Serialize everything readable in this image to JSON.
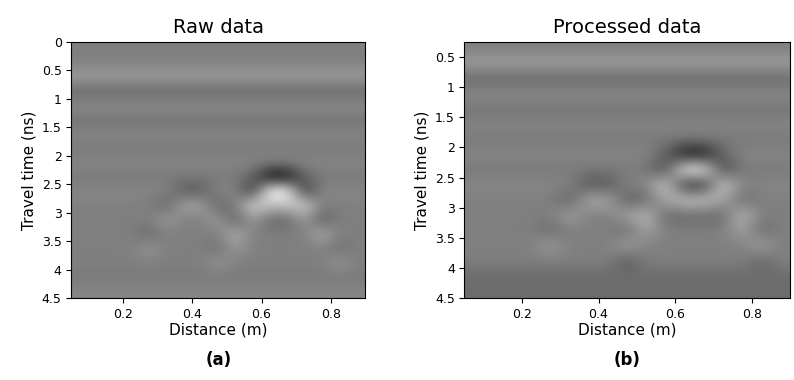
{
  "chart_data": [
    {
      "type": "heatmap",
      "title": "Raw data",
      "caption": "(a)",
      "x_label": "Distance (m)",
      "y_label": "Travel time (ns)",
      "xlim": [
        0.05,
        0.9
      ],
      "ylim": [
        4.5,
        0
      ],
      "xticks": [
        0.2,
        0.4,
        0.6,
        0.8
      ],
      "yticks": [
        0,
        0.5,
        1,
        1.5,
        2,
        2.5,
        3,
        3.5,
        4,
        4.5
      ],
      "color": "gray",
      "value_range": [
        -1,
        1
      ],
      "x": [
        0.075,
        0.125,
        0.175,
        0.225,
        0.275,
        0.325,
        0.375,
        0.425,
        0.475,
        0.525,
        0.575,
        0.625,
        0.675,
        0.725,
        0.775,
        0.825,
        0.875
      ],
      "y": [
        0.125,
        0.375,
        0.625,
        0.875,
        1.125,
        1.375,
        1.625,
        1.875,
        2.125,
        2.375,
        2.625,
        2.875,
        3.125,
        3.375,
        3.625,
        3.875,
        4.125,
        4.375
      ],
      "cells": [
        [
          0,
          0,
          0,
          0,
          0,
          0,
          0,
          0,
          0,
          0,
          0,
          0,
          0,
          0,
          0,
          0,
          0
        ],
        [
          0,
          0,
          0,
          0,
          0,
          0,
          0,
          0,
          0,
          0,
          0,
          0,
          0,
          0,
          0,
          0,
          0
        ],
        [
          0.25,
          0.25,
          0.25,
          0.25,
          0.25,
          0.25,
          0.25,
          0.25,
          0.25,
          0.25,
          0.25,
          0.25,
          0.25,
          0.25,
          0.25,
          0.25,
          0.25
        ],
        [
          -0.2,
          -0.2,
          -0.2,
          -0.2,
          -0.2,
          -0.2,
          -0.2,
          -0.2,
          -0.2,
          -0.2,
          -0.2,
          -0.2,
          -0.2,
          -0.2,
          -0.2,
          -0.2,
          -0.2
        ],
        [
          0.1,
          0.1,
          0.1,
          0.1,
          0.1,
          0.1,
          0.1,
          0.1,
          0.1,
          0.1,
          0.1,
          0.1,
          0.1,
          0.1,
          0.1,
          0.1,
          0.1
        ],
        [
          -0.1,
          -0.1,
          -0.1,
          -0.1,
          -0.1,
          -0.1,
          -0.1,
          -0.1,
          -0.1,
          -0.1,
          -0.1,
          -0.1,
          -0.1,
          -0.1,
          -0.1,
          -0.1,
          -0.1
        ],
        [
          0.05,
          0.05,
          0.05,
          0.05,
          0.05,
          0.05,
          0.05,
          0.05,
          0.05,
          0.05,
          0.05,
          0.05,
          0.05,
          0.05,
          0.05,
          0.05,
          0.05
        ],
        [
          -0.05,
          -0.05,
          -0.05,
          -0.05,
          -0.05,
          -0.05,
          -0.05,
          -0.05,
          -0.05,
          -0.05,
          -0.05,
          -0.05,
          -0.05,
          -0.05,
          -0.05,
          -0.05,
          -0.05
        ],
        [
          0.05,
          0.05,
          0.05,
          0.05,
          0.05,
          0.05,
          0.05,
          0.05,
          0.05,
          0.05,
          0.05,
          0.05,
          0.05,
          0.05,
          0.05,
          0.05,
          0.05
        ],
        [
          -0.05,
          -0.05,
          -0.05,
          -0.05,
          -0.05,
          -0.05,
          -0.05,
          -0.05,
          -0.05,
          -0.05,
          -0.2,
          -1.0,
          -1.0,
          -0.2,
          -0.05,
          -0.05,
          -0.05
        ],
        [
          0.05,
          0.05,
          0.05,
          0.05,
          0.05,
          0.05,
          -0.3,
          -0.3,
          0.05,
          0.05,
          -0.6,
          1.0,
          1.0,
          -0.6,
          0.05,
          0.05,
          0.05
        ],
        [
          0,
          0,
          0,
          0,
          0,
          -0.25,
          0.3,
          0.3,
          -0.25,
          0,
          0.7,
          0.5,
          0.5,
          0.7,
          0,
          0,
          0
        ],
        [
          0,
          0,
          0,
          0,
          0,
          0.25,
          0,
          0,
          0.25,
          -0.3,
          0.2,
          -0.2,
          -0.2,
          0.2,
          -0.3,
          0,
          0
        ],
        [
          0,
          0,
          0,
          0,
          -0.2,
          0,
          0,
          0,
          0,
          0.4,
          0,
          0,
          0,
          0,
          0.4,
          0,
          0
        ],
        [
          0,
          0,
          0,
          0,
          0.2,
          0,
          0,
          0,
          -0.15,
          0.2,
          0,
          0,
          0,
          0,
          0,
          -0.15,
          0
        ],
        [
          0,
          0,
          0,
          0,
          0,
          0,
          0,
          0,
          0.2,
          0,
          0,
          0,
          0,
          0,
          0,
          0.2,
          0
        ],
        [
          -0.05,
          -0.05,
          -0.05,
          -0.05,
          -0.05,
          -0.05,
          -0.05,
          -0.05,
          -0.05,
          -0.05,
          -0.05,
          -0.05,
          -0.05,
          -0.05,
          -0.05,
          -0.05,
          -0.05
        ],
        [
          0.05,
          0.05,
          0.05,
          0.05,
          0.05,
          0.05,
          0.05,
          0.05,
          0.05,
          0.05,
          0.05,
          0.05,
          0.05,
          0.05,
          0.05,
          0.05,
          0.05
        ]
      ]
    },
    {
      "type": "heatmap",
      "title": "Processed data",
      "caption": "(b)",
      "x_label": "Distance (m)",
      "y_label": "Travel time (ns)",
      "xlim": [
        0.05,
        0.9
      ],
      "ylim": [
        4.5,
        0.25
      ],
      "xticks": [
        0.2,
        0.4,
        0.6,
        0.8
      ],
      "yticks": [
        0.5,
        1,
        1.5,
        2,
        2.5,
        3,
        3.5,
        4,
        4.5
      ],
      "color": "gray",
      "value_range": [
        -1,
        1
      ],
      "x": [
        0.075,
        0.125,
        0.175,
        0.225,
        0.275,
        0.325,
        0.375,
        0.425,
        0.475,
        0.525,
        0.575,
        0.625,
        0.675,
        0.725,
        0.775,
        0.825,
        0.875
      ],
      "y": [
        0.125,
        0.375,
        0.625,
        0.875,
        1.125,
        1.375,
        1.625,
        1.875,
        2.125,
        2.375,
        2.625,
        2.875,
        3.125,
        3.375,
        3.625,
        3.875,
        4.125,
        4.375
      ],
      "cells": [
        [
          0,
          0,
          0,
          0,
          0,
          0,
          0,
          0,
          0,
          0,
          0,
          0,
          0,
          0,
          0,
          0,
          0
        ],
        [
          0,
          0,
          0,
          0,
          0,
          0,
          0,
          0,
          0,
          0,
          0,
          0,
          0,
          0,
          0,
          0,
          0
        ],
        [
          0.25,
          0.25,
          0.25,
          0.25,
          0.25,
          0.25,
          0.25,
          0.25,
          0.25,
          0.25,
          0.25,
          0.25,
          0.25,
          0.25,
          0.25,
          0.25,
          0.25
        ],
        [
          -0.2,
          -0.2,
          -0.2,
          -0.2,
          -0.2,
          -0.2,
          -0.2,
          -0.2,
          -0.2,
          -0.2,
          -0.2,
          -0.2,
          -0.2,
          -0.2,
          -0.2,
          -0.2,
          -0.2
        ],
        [
          0.1,
          0.1,
          0.1,
          0.1,
          0.1,
          0.1,
          0.1,
          0.1,
          0.1,
          0.1,
          0.1,
          0.1,
          0.1,
          0.1,
          0.1,
          0.1,
          0.1
        ],
        [
          -0.1,
          -0.1,
          -0.1,
          -0.1,
          -0.1,
          -0.1,
          -0.1,
          -0.1,
          -0.1,
          -0.1,
          -0.1,
          -0.1,
          -0.1,
          -0.1,
          -0.1,
          -0.1,
          -0.1
        ],
        [
          0.05,
          0.05,
          0.05,
          0.05,
          0.05,
          0.05,
          0.05,
          0.05,
          0.05,
          0.05,
          0.05,
          0.05,
          0.05,
          0.05,
          0.05,
          0.05,
          0.05
        ],
        [
          -0.05,
          -0.05,
          -0.05,
          -0.05,
          -0.05,
          -0.05,
          -0.05,
          -0.05,
          -0.05,
          -0.05,
          -0.05,
          -0.05,
          -0.05,
          -0.05,
          -0.05,
          -0.05,
          -0.05
        ],
        [
          0.05,
          0.05,
          0.05,
          0.05,
          0.05,
          0.05,
          0.05,
          0.05,
          0.05,
          0.05,
          -0.2,
          -0.9,
          -0.9,
          -0.2,
          0.05,
          0.05,
          0.05
        ],
        [
          -0.05,
          -0.05,
          -0.05,
          -0.05,
          -0.05,
          -0.05,
          -0.05,
          -0.05,
          -0.05,
          -0.05,
          -0.5,
          1.0,
          1.0,
          -0.5,
          -0.05,
          -0.05,
          -0.05
        ],
        [
          0.05,
          0.05,
          0.05,
          0.05,
          0.05,
          0.05,
          -0.35,
          -0.35,
          0.05,
          0.05,
          0.7,
          -0.7,
          -0.7,
          0.7,
          0.05,
          0.05,
          0.05
        ],
        [
          0,
          0,
          0,
          0,
          0,
          -0.3,
          0.35,
          0.35,
          -0.3,
          -0.2,
          0.3,
          0.6,
          0.6,
          0.3,
          -0.2,
          0,
          0
        ],
        [
          0,
          0,
          0,
          0,
          0,
          0.3,
          0,
          0,
          0.3,
          0.5,
          -0.2,
          -0.2,
          -0.2,
          -0.2,
          0.5,
          0,
          0
        ],
        [
          0,
          0,
          0,
          0,
          -0.2,
          0,
          0,
          0,
          -0.2,
          0.3,
          0,
          0,
          0,
          0,
          0.3,
          -0.2,
          0
        ],
        [
          0,
          0,
          0,
          0,
          0.25,
          0,
          0,
          0,
          0.3,
          0,
          0,
          0,
          0,
          0,
          0,
          0.3,
          0
        ],
        [
          0,
          0,
          0,
          0,
          0,
          0,
          0,
          0,
          -0.3,
          0,
          0,
          0,
          0,
          0,
          0,
          -0.2,
          0
        ],
        [
          -0.15,
          -0.15,
          -0.15,
          -0.15,
          -0.15,
          -0.15,
          -0.15,
          -0.15,
          -0.15,
          -0.15,
          -0.15,
          -0.15,
          -0.15,
          -0.15,
          -0.15,
          -0.15,
          -0.15
        ],
        [
          -0.15,
          -0.15,
          -0.15,
          -0.15,
          -0.15,
          -0.15,
          -0.15,
          -0.15,
          -0.15,
          -0.15,
          -0.15,
          -0.15,
          -0.15,
          -0.15,
          -0.15,
          -0.15,
          -0.15
        ]
      ]
    }
  ]
}
